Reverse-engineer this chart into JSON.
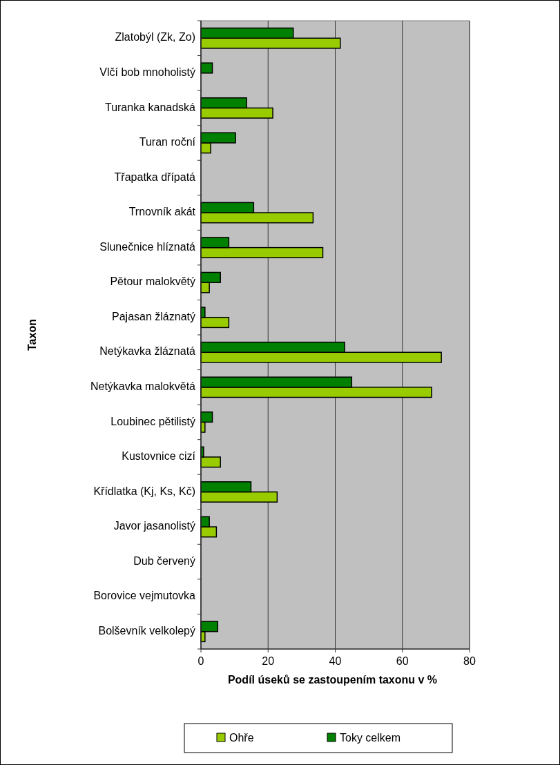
{
  "chart_data": {
    "type": "bar",
    "orientation": "horizontal",
    "xlabel": "Podíl úseků se zastoupením taxonu v %",
    "ylabel": "Taxon",
    "categories": [
      "Zlatobýl (Zk, Zo)",
      "Vlčí bob mnoholistý",
      "Turanka kanadská",
      "Turan roční",
      "Třapatka dřípatá",
      "Trnovník akát",
      "Slunečnice hlíznatá",
      "Pětour malokvětý",
      "Pajasan žláznatý",
      "Netýkavka žláznatá",
      "Netýkavka malokvětá",
      "Loubinec pětilistý",
      "Kustovnice cizí",
      "Křídlatka (Kj, Ks, Kč)",
      "Javor jasanolistý",
      "Dub červený",
      "Borovice vejmutovka",
      "Bolševník velkolepý"
    ],
    "series": [
      {
        "name": "Ohře",
        "color": "#99cc00",
        "values": [
          41.5,
          0,
          21.4,
          2.9,
          0,
          33.4,
          36.3,
          2.5,
          8.3,
          71.6,
          68.7,
          1.2,
          5.8,
          22.7,
          4.6,
          0,
          0,
          1.2
        ]
      },
      {
        "name": "Toky celkem",
        "color": "#008000",
        "values": [
          27.5,
          3.4,
          13.6,
          10.3,
          0,
          15.7,
          8.3,
          5.8,
          1.2,
          42.8,
          44.9,
          3.4,
          0.8,
          14.9,
          2.5,
          0,
          0,
          5.0
        ]
      }
    ],
    "xlim": [
      0,
      80
    ],
    "xticks": [
      0,
      20,
      40,
      60,
      80
    ],
    "grid": "x",
    "legend": "bottom"
  }
}
